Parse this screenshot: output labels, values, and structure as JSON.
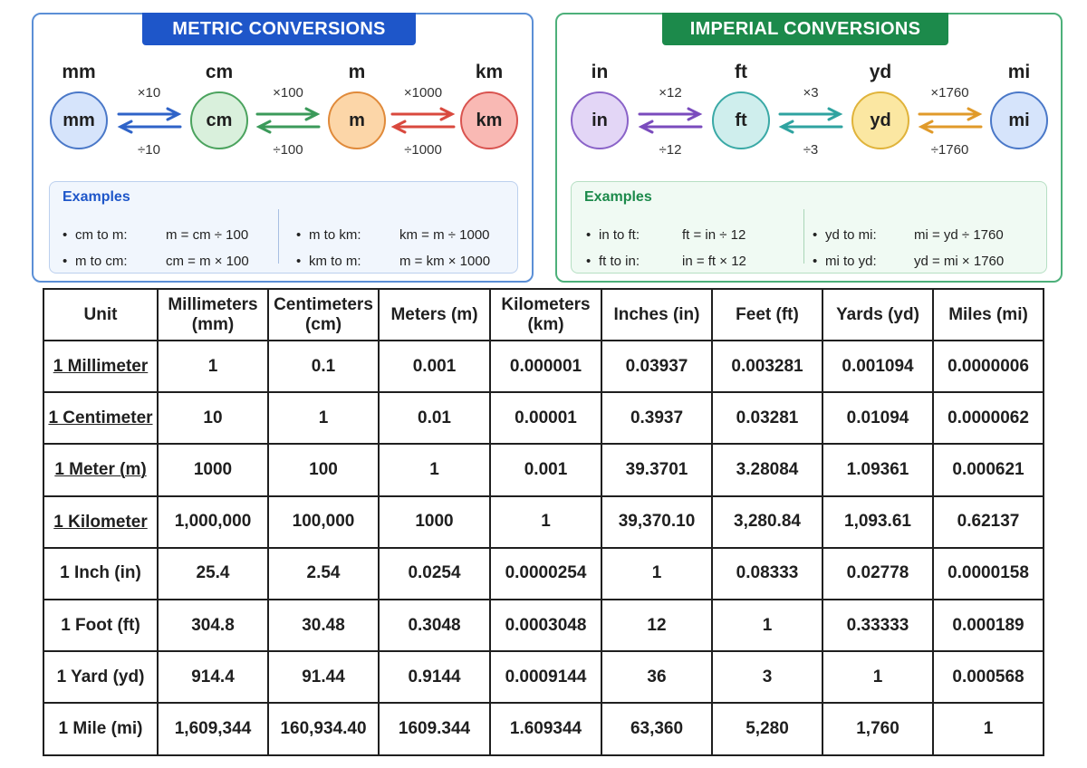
{
  "metric": {
    "title": "METRIC CONVERSIONS",
    "units": [
      {
        "label": "mm",
        "circle": "mm",
        "fill": "#d6e4fb",
        "stroke": "#4a78c8"
      },
      {
        "label": "cm",
        "circle": "cm",
        "fill": "#d9f0dc",
        "stroke": "#4ba35e"
      },
      {
        "label": "m",
        "circle": "m",
        "fill": "#fcd6a8",
        "stroke": "#e08a3a"
      },
      {
        "label": "km",
        "circle": "km",
        "fill": "#f9b9b4",
        "stroke": "#d9534f"
      }
    ],
    "steps": [
      {
        "multiply": "×10",
        "divide": "÷10",
        "color": "#2f63c8"
      },
      {
        "multiply": "×100",
        "divide": "÷100",
        "color": "#3b9a5a"
      },
      {
        "multiply": "×1000",
        "divide": "÷1000",
        "color": "#d9493e"
      }
    ],
    "examples_title": "Examples",
    "examples": [
      {
        "label": "cm to m:",
        "formula": "m = cm ÷ 100"
      },
      {
        "label": "m to cm:",
        "formula": "cm = m × 100"
      },
      {
        "label": "m to km:",
        "formula": "km = m ÷ 1000"
      },
      {
        "label": "km to m:",
        "formula": "m = km × 1000"
      }
    ]
  },
  "imperial": {
    "title": "IMPERIAL CONVERSIONS",
    "units": [
      {
        "label": "in",
        "circle": "in",
        "fill": "#e3d6f6",
        "stroke": "#8a63c8"
      },
      {
        "label": "ft",
        "circle": "ft",
        "fill": "#cfeeed",
        "stroke": "#3aa9a6"
      },
      {
        "label": "yd",
        "circle": "yd",
        "fill": "#fbe7a2",
        "stroke": "#e0b33a"
      },
      {
        "label": "mi",
        "circle": "mi",
        "fill": "#d6e4fb",
        "stroke": "#4a78c8"
      }
    ],
    "steps": [
      {
        "multiply": "×12",
        "divide": "÷12",
        "color": "#7a4bbd"
      },
      {
        "multiply": "×3",
        "divide": "÷3",
        "color": "#2fa3a0"
      },
      {
        "multiply": "×1760",
        "divide": "÷1760",
        "color": "#e09a2a"
      }
    ],
    "examples_title": "Examples",
    "examples": [
      {
        "label": "in to ft:",
        "formula": "ft = in ÷ 12"
      },
      {
        "label": "ft to in:",
        "formula": "in = ft × 12"
      },
      {
        "label": "yd to mi:",
        "formula": "mi = yd ÷ 1760"
      },
      {
        "label": "mi to yd:",
        "formula": "yd = mi × 1760"
      }
    ]
  },
  "table": {
    "headers": [
      "Unit",
      "Millimeters (mm)",
      "Centimeters (cm)",
      "Meters (m)",
      "Kilometers (km)",
      "Inches (in)",
      "Feet (ft)",
      "Yards (yd)",
      "Miles (mi)"
    ],
    "rows": [
      [
        "1 Millimeter",
        "1",
        "0.1",
        "0.001",
        "0.000001",
        "0.03937",
        "0.003281",
        "0.001094",
        "0.0000006"
      ],
      [
        "1 Centimeter",
        "10",
        "1",
        "0.01",
        "0.00001",
        "0.3937",
        "0.03281",
        "0.01094",
        "0.0000062"
      ],
      [
        "1 Meter (m)",
        "1000",
        "100",
        "1",
        "0.001",
        "39.3701",
        "3.28084",
        "1.09361",
        "0.000621"
      ],
      [
        "1 Kilometer",
        "1,000,000",
        "100,000",
        "1000",
        "1",
        "39,370.10",
        "3,280.84",
        "1,093.61",
        "0.62137"
      ],
      [
        "1 Inch (in)",
        "25.4",
        "2.54",
        "0.0254",
        "0.0000254",
        "1",
        "0.08333",
        "0.02778",
        "0.0000158"
      ],
      [
        "1 Foot (ft)",
        "304.8",
        "30.48",
        "0.3048",
        "0.0003048",
        "12",
        "1",
        "0.33333",
        "0.000189"
      ],
      [
        "1 Yard (yd)",
        "914.4",
        "91.44",
        "0.9144",
        "0.0009144",
        "36",
        "3",
        "1",
        "0.000568"
      ],
      [
        "1 Mile (mi)",
        "1,609,344",
        "160,934.40",
        "1609.344",
        "1.609344",
        "63,360",
        "5,280",
        "1,760",
        "1"
      ]
    ]
  }
}
